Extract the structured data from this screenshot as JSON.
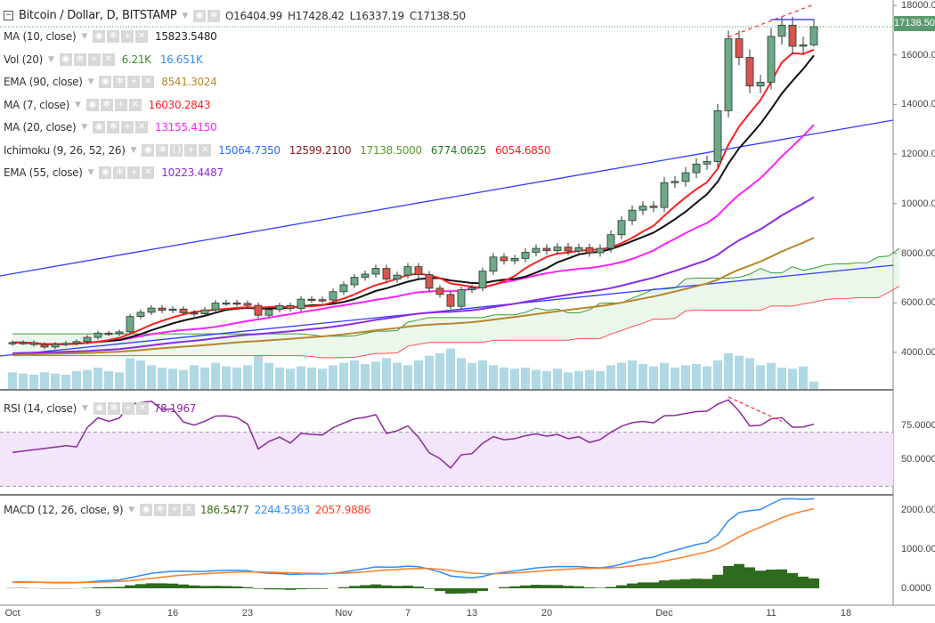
{
  "header": {
    "symbol": "Bitcoin / Dollar, D, BITSTAMP",
    "o": "O16404.99",
    "h": "H17428.42",
    "l": "L16337.19",
    "c": "C17138.50"
  },
  "legends": [
    {
      "name": "MA (10, close)",
      "values": [
        {
          "v": "15823.5480",
          "color": "#222222"
        }
      ]
    },
    {
      "name": "Vol (20)",
      "values": [
        {
          "v": "6.21K",
          "color": "#3c8c2c"
        },
        {
          "v": "16.651K",
          "color": "#2f8cff"
        }
      ]
    },
    {
      "name": "EMA (90, close)",
      "values": [
        {
          "v": "8541.3024",
          "color": "#b8862b"
        }
      ]
    },
    {
      "name": "MA (7, close)",
      "values": [
        {
          "v": "16030.2843",
          "color": "#ff2020"
        }
      ]
    },
    {
      "name": "MA (20, close)",
      "values": [
        {
          "v": "13155.4150",
          "color": "#ff20ff"
        }
      ]
    },
    {
      "name": "Ichimoku (9, 26, 52, 26)",
      "values": [
        {
          "v": "15064.7350",
          "color": "#2f6cff"
        },
        {
          "v": "12599.2100",
          "color": "#8b1a1a"
        },
        {
          "v": "17138.5000",
          "color": "#5a9a2a"
        },
        {
          "v": "6774.0625",
          "color": "#2a7a2a"
        },
        {
          "v": "6054.6850",
          "color": "#ff2020"
        }
      ]
    },
    {
      "name": "EMA (55, close)",
      "values": [
        {
          "v": "10223.4487",
          "color": "#8a2be2"
        }
      ]
    }
  ],
  "rsi_legend": {
    "name": "RSI (14, close)",
    "value": "78.1967",
    "color": "#8b2a9b"
  },
  "macd_legend": {
    "name": "MACD (12, 26, close, 9)",
    "values": [
      {
        "v": "186.5477",
        "color": "#3c6c1c"
      },
      {
        "v": "2244.5363",
        "color": "#2f8cff"
      },
      {
        "v": "2057.9886",
        "color": "#ff4020"
      }
    ]
  },
  "price_axis": [
    "18000.00",
    "16000.00",
    "14000.00",
    "12000.00",
    "10000.00",
    "8000.00",
    "6000.00",
    "4000.00"
  ],
  "last_price": "17138.50",
  "rsi_axis": [
    "75.0000",
    "50.0000"
  ],
  "macd_axis": [
    "2000.0000",
    "1000.0000",
    "0.0000"
  ],
  "x_axis": [
    {
      "label": "Oct",
      "day": 0
    },
    {
      "label": "9",
      "day": 8
    },
    {
      "label": "16",
      "day": 15
    },
    {
      "label": "23",
      "day": 22
    },
    {
      "label": "Nov",
      "day": 31
    },
    {
      "label": "7",
      "day": 37
    },
    {
      "label": "13",
      "day": 43
    },
    {
      "label": "20",
      "day": 50
    },
    {
      "label": "Dec",
      "day": 61
    },
    {
      "label": "11",
      "day": 71
    },
    {
      "label": "18",
      "day": 78
    }
  ],
  "colors": {
    "up": "#6fa887",
    "down": "#d9534f",
    "ma7": "#ff2020",
    "ma10": "#111111",
    "ma20": "#ff20ff",
    "ema55": "#8a2be2",
    "ema90": "#b8862b",
    "trend": "#2f3cff",
    "rsi": "#8b2a9b",
    "macd": "#2f8cff",
    "signal": "#ff7f27",
    "hist": "#2e6b1e"
  },
  "chart_data": {
    "type": "candlestick",
    "title": "Bitcoin / Dollar, D, BITSTAMP",
    "x_start": "Oct 1",
    "ylim": [
      2800,
      18400
    ],
    "close": [
      4400,
      4400,
      4320,
      4220,
      4330,
      4370,
      4440,
      4610,
      4780,
      4760,
      4830,
      5450,
      5620,
      5790,
      5700,
      5750,
      5600,
      5560,
      5720,
      5990,
      6000,
      5980,
      5900,
      5500,
      5730,
      5890,
      5770,
      6150,
      6130,
      6120,
      6450,
      6730,
      7030,
      7160,
      7390,
      6960,
      7120,
      7460,
      7140,
      6590,
      6340,
      5860,
      6530,
      6600,
      7280,
      7850,
      7700,
      7790,
      8040,
      8200,
      8110,
      8250,
      8090,
      8230,
      8020,
      8200,
      8750,
      9320,
      9740,
      9900,
      9850,
      10850,
      10900,
      11250,
      11600,
      11700,
      13750,
      16650,
      15900,
      14750,
      14900,
      16750,
      17200,
      16350,
      16404.99,
      17138.5
    ],
    "last_candle": {
      "open": 16404.99,
      "high": 17428.42,
      "low": 16337.19,
      "close": 17138.5
    },
    "volume_k": [
      14,
      13,
      12,
      14,
      13,
      12,
      15,
      16,
      18,
      15,
      14,
      26,
      24,
      20,
      18,
      17,
      16,
      20,
      18,
      22,
      19,
      18,
      20,
      28,
      22,
      18,
      17,
      19,
      18,
      17,
      20,
      22,
      24,
      21,
      23,
      26,
      22,
      20,
      24,
      28,
      30,
      34,
      26,
      22,
      24,
      20,
      18,
      17,
      18,
      16,
      15,
      17,
      14,
      15,
      16,
      15,
      20,
      22,
      24,
      21,
      19,
      22,
      18,
      20,
      21,
      19,
      24,
      30,
      28,
      26,
      20,
      22,
      18,
      17,
      19,
      6.21
    ]
  }
}
